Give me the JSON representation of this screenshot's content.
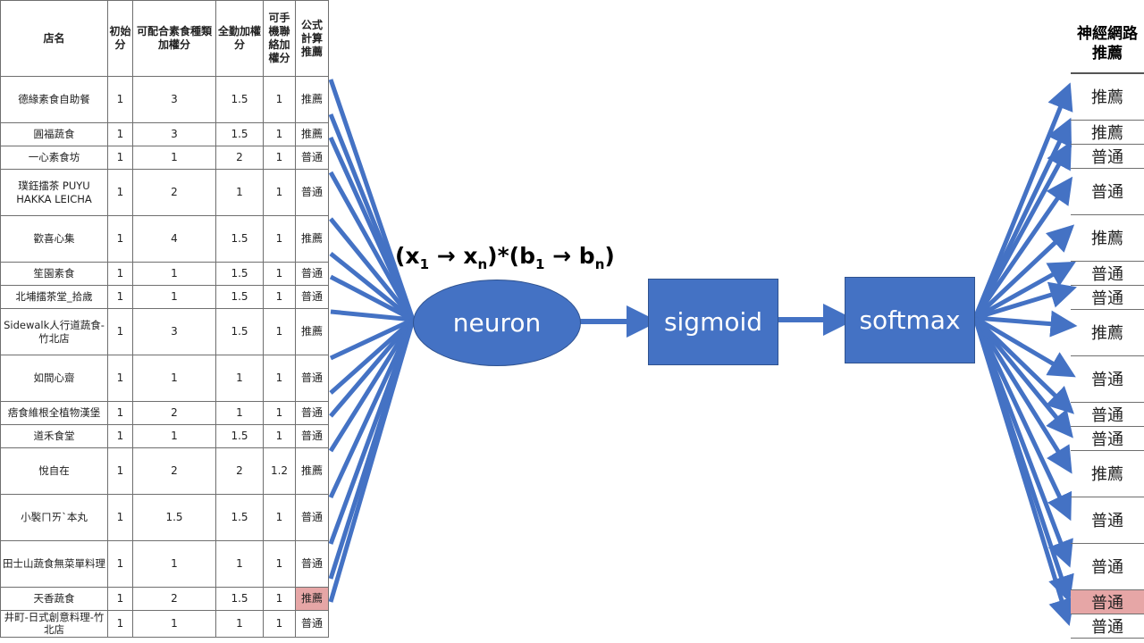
{
  "source_table": {
    "headers": [
      "店名",
      "初始分",
      "可配合素食種類加權分",
      "全勤加權分",
      "可手機聯絡加權分",
      "公式計算推薦"
    ],
    "rows": [
      {
        "name": "德緣素食自助餐",
        "c1": "1",
        "c2": "3",
        "c3": "1.5",
        "c4": "1",
        "rec": "推薦"
      },
      {
        "name": "圓福蔬食",
        "c1": "1",
        "c2": "3",
        "c3": "1.5",
        "c4": "1",
        "rec": "推薦"
      },
      {
        "name": "一心素食坊",
        "c1": "1",
        "c2": "1",
        "c3": "2",
        "c4": "1",
        "rec": "普通"
      },
      {
        "name": "璞鈺擂茶 PUYU HAKKA LEICHA",
        "c1": "1",
        "c2": "2",
        "c3": "1",
        "c4": "1",
        "rec": "普通"
      },
      {
        "name": "歡喜心集",
        "c1": "1",
        "c2": "4",
        "c3": "1.5",
        "c4": "1",
        "rec": "推薦"
      },
      {
        "name": "笙園素食",
        "c1": "1",
        "c2": "1",
        "c3": "1.5",
        "c4": "1",
        "rec": "普通"
      },
      {
        "name": "北埔擂茶堂_拾歲",
        "c1": "1",
        "c2": "1",
        "c3": "1.5",
        "c4": "1",
        "rec": "普通"
      },
      {
        "name": "Sidewalk人行道蔬食-竹北店",
        "c1": "1",
        "c2": "3",
        "c3": "1.5",
        "c4": "1",
        "rec": "推薦"
      },
      {
        "name": "如間心齋",
        "c1": "1",
        "c2": "1",
        "c3": "1",
        "c4": "1",
        "rec": "普通"
      },
      {
        "name": "痞食維根全植物漢堡",
        "c1": "1",
        "c2": "2",
        "c3": "1",
        "c4": "1",
        "rec": "普通"
      },
      {
        "name": "道禾食堂",
        "c1": "1",
        "c2": "1",
        "c3": "1.5",
        "c4": "1",
        "rec": "普通"
      },
      {
        "name": "悅自在",
        "c1": "1",
        "c2": "2",
        "c3": "2",
        "c4": "1.2",
        "rec": "推薦"
      },
      {
        "name": "小褧ㄇㄞˋ本丸",
        "c1": "1",
        "c2": "1.5",
        "c3": "1.5",
        "c4": "1",
        "rec": "普通"
      },
      {
        "name": "田士山蔬食無菜單料理",
        "c1": "1",
        "c2": "1",
        "c3": "1",
        "c4": "1",
        "rec": "普通"
      },
      {
        "name": "天香蔬食",
        "c1": "1",
        "c2": "2",
        "c3": "1.5",
        "c4": "1",
        "rec": "推薦",
        "highlight": true
      },
      {
        "name": "井町-日式創意料理-竹北店",
        "c1": "1",
        "c2": "1",
        "c3": "1",
        "c4": "1",
        "rec": "普通"
      }
    ]
  },
  "network": {
    "formula": "(x1 → xn)*(b1 → bn)",
    "formula_parts": {
      "open": "(x",
      "sub1": "1",
      "arrow1": " → x",
      "subn": "n",
      "mid": ")*(b",
      "sub1b": "1",
      "arrow2": " → b",
      "subnb": "n",
      "close": ")"
    },
    "neuron_label": "neuron",
    "sigmoid_label": "sigmoid",
    "softmax_label": "softmax",
    "color": "#4472c4"
  },
  "output_table": {
    "header": "神經網路推薦",
    "rows": [
      {
        "rec": "推薦"
      },
      {
        "rec": "推薦"
      },
      {
        "rec": "普通"
      },
      {
        "rec": "普通"
      },
      {
        "rec": "推薦"
      },
      {
        "rec": "普通"
      },
      {
        "rec": "普通"
      },
      {
        "rec": "推薦"
      },
      {
        "rec": "普通"
      },
      {
        "rec": "普通"
      },
      {
        "rec": "普通"
      },
      {
        "rec": "推薦"
      },
      {
        "rec": "普通"
      },
      {
        "rec": "普通"
      },
      {
        "rec": "普通",
        "highlight": true
      },
      {
        "rec": "普通"
      }
    ]
  }
}
